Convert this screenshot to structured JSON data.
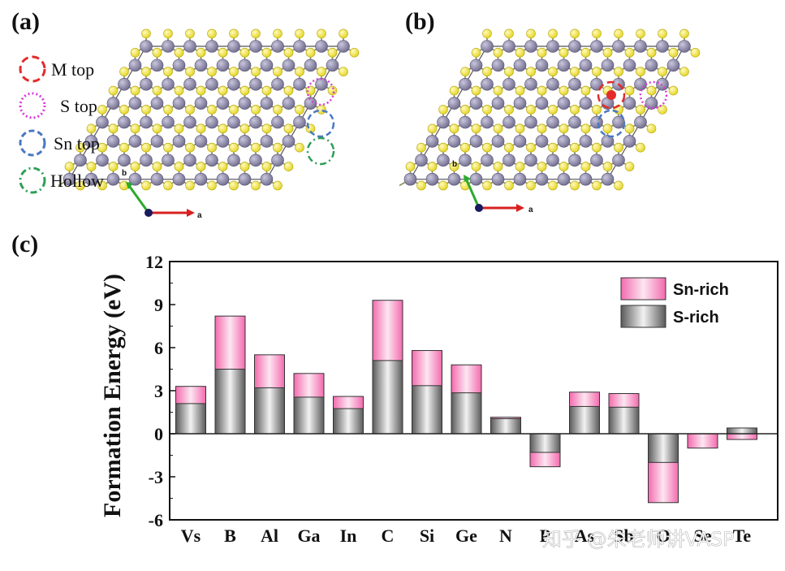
{
  "panels": {
    "a": {
      "label": "(a)"
    },
    "b": {
      "label": "(b)"
    },
    "c": {
      "label": "(c)"
    }
  },
  "site_legend": [
    {
      "label": "M top",
      "color": "#e32b2b"
    },
    {
      "label": "S top",
      "color": "#d83bd8"
    },
    {
      "label": "Sn top",
      "color": "#4a78c2"
    },
    {
      "label": "Hollow",
      "color": "#2f9e57"
    }
  ],
  "axes_indicator": {
    "a_label": "a",
    "b_label": "b"
  },
  "colors": {
    "sulfur": "#f0e23a",
    "tin": "#8d8aa6",
    "sn_rich": "#f57ab8",
    "s_rich": "#6e6e6e",
    "axis_a": "#d92020",
    "axis_b": "#2caa2c"
  },
  "chart_data": {
    "type": "bar",
    "ylabel": "Formation Energy (eV)",
    "xlabel": "",
    "ylim": [
      -6,
      12
    ],
    "yticks": [
      -6,
      -3,
      0,
      3,
      6,
      9,
      12
    ],
    "categories": [
      "Vs",
      "B",
      "Al",
      "Ga",
      "In",
      "C",
      "Si",
      "Ge",
      "N",
      "P",
      "As",
      "Sb",
      "O",
      "Se",
      "Te"
    ],
    "series": [
      {
        "name": "Sn-rich",
        "values": [
          3.3,
          8.2,
          5.5,
          4.2,
          2.6,
          9.3,
          5.8,
          4.8,
          1.15,
          -2.3,
          2.9,
          2.8,
          -4.8,
          -1.0,
          -0.4
        ]
      },
      {
        "name": "S-rich",
        "values": [
          2.1,
          4.5,
          3.2,
          2.55,
          1.75,
          5.1,
          3.35,
          2.85,
          1.05,
          -1.3,
          1.9,
          1.85,
          -2.0,
          0.0,
          0.4
        ]
      }
    ],
    "legend_position": "top-right",
    "grid": false
  },
  "watermark": "知乎 @朱老师讲VASP"
}
